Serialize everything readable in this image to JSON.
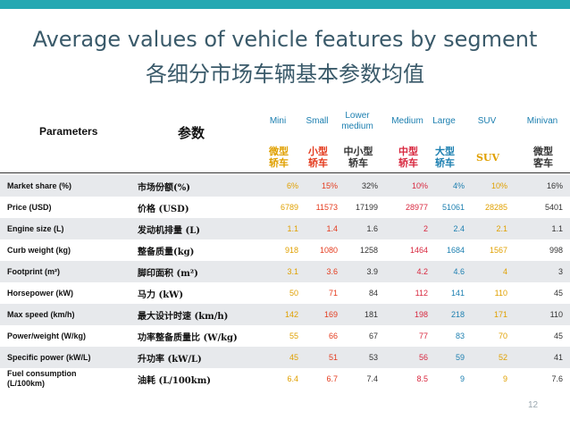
{
  "title_en": "Average values of vehicle features by segment",
  "title_zh": "各细分市场车辆基本参数均值",
  "header": {
    "parameters_en": "Parameters",
    "parameters_zh": "参数",
    "segments": [
      {
        "en": "Mini",
        "zh": "微型\n轿车",
        "color": "#e0a000"
      },
      {
        "en": "Small",
        "zh": "小型\n轿车",
        "color": "#e43b1e"
      },
      {
        "en": "Lower\nmedium",
        "zh": "中小型\n轿车",
        "color": "#333333"
      },
      {
        "en": "Medium",
        "zh": "中型\n轿车",
        "color": "#d8283f"
      },
      {
        "en": "Large",
        "zh": "大型\n轿车",
        "color": "#1c7fb0"
      },
      {
        "en": "SUV",
        "zh": "SUV",
        "color": "#e0a000"
      },
      {
        "en": "Minivan",
        "zh": "微型\n客车",
        "color": "#333333"
      }
    ]
  },
  "rows": [
    {
      "en": "Market share (%)",
      "zh": "市场份额(%)",
      "values": [
        "6%",
        "15%",
        "32%",
        "10%",
        "4%",
        "10%",
        "16%"
      ]
    },
    {
      "en": "Price (USD)",
      "zh": "价格 (USD)",
      "values": [
        "6789",
        "11573",
        "17199",
        "28977",
        "51061",
        "28285",
        "5401"
      ]
    },
    {
      "en": "Engine size (L)",
      "zh": "发动机排量 (L)",
      "values": [
        "1.1",
        "1.4",
        "1.6",
        "2",
        "2.4",
        "2.1",
        "1.1"
      ]
    },
    {
      "en": "Curb weight (kg)",
      "zh": "整备质量(kg)",
      "values": [
        "918",
        "1080",
        "1258",
        "1464",
        "1684",
        "1567",
        "998"
      ]
    },
    {
      "en": "Footprint (m²)",
      "zh": "脚印面积 (m²)",
      "values": [
        "3.1",
        "3.6",
        "3.9",
        "4.2",
        "4.6",
        "4",
        "3"
      ]
    },
    {
      "en": "Horsepower (kW)",
      "zh": "马力 (kW)",
      "values": [
        "50",
        "71",
        "84",
        "112",
        "141",
        "110",
        "45"
      ]
    },
    {
      "en": "Max speed (km/h)",
      "zh": "最大设计时速 (km/h)",
      "values": [
        "142",
        "169",
        "181",
        "198",
        "218",
        "171",
        "110"
      ]
    },
    {
      "en": "Power/weight (W/kg)",
      "zh": "功率整备质量比 (W/kg)",
      "values": [
        "55",
        "66",
        "67",
        "77",
        "83",
        "70",
        "45"
      ]
    },
    {
      "en": "Specific power (kW/L)",
      "zh": "升功率 (kW/L)",
      "values": [
        "45",
        "51",
        "53",
        "56",
        "59",
        "52",
        "41"
      ]
    },
    {
      "en": "Fuel consumption\n(L/100km)",
      "zh": "油耗 (L/100km)",
      "values": [
        "6.4",
        "6.7",
        "7.4",
        "8.5",
        "9",
        "9",
        "7.6"
      ]
    }
  ],
  "page_number": "12",
  "colors": {
    "accent_bar": "#25a8b2",
    "title": "#3a5a6a",
    "row_shade": "#e7e9ec"
  }
}
